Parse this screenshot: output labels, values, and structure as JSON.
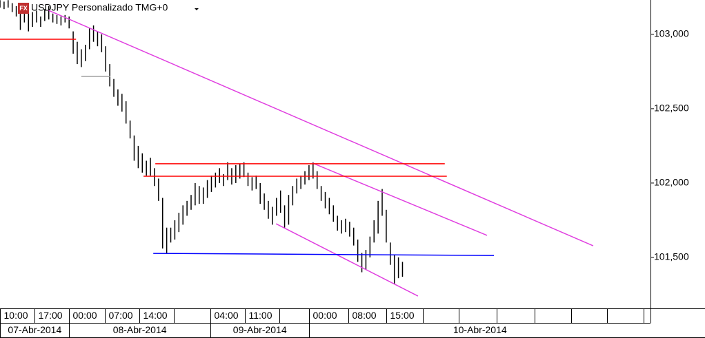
{
  "chart_data": {
    "type": "range",
    "title": "USDJPY Personalizado TMG+0",
    "icon_label": "FX",
    "color": "#000000",
    "xlim": [
      0,
      160
    ],
    "ylim": [
      101.157,
      103.231
    ],
    "yticks": [
      {
        "value": 103,
        "label": "103,000"
      },
      {
        "value": 102.5,
        "label": "102,500"
      },
      {
        "value": 102,
        "label": "102,000"
      },
      {
        "value": 101.5,
        "label": "101,500"
      }
    ],
    "xticks": [
      {
        "value": 0,
        "label": "10:00"
      },
      {
        "value": 8.5,
        "label": "17:00"
      },
      {
        "value": 17,
        "label": "00:00"
      },
      {
        "value": 25.8,
        "label": "07:00"
      },
      {
        "value": 34.3,
        "label": "14:00"
      },
      {
        "value": 51.7,
        "label": "04:00"
      },
      {
        "value": 60.2,
        "label": "11:00"
      },
      {
        "value": 76,
        "label": "00:00"
      },
      {
        "value": 85.7,
        "label": "08:00"
      },
      {
        "value": 95,
        "label": "15:00"
      }
    ],
    "date_ticks": [
      {
        "value": 0,
        "label": "07-Abr-2014"
      },
      {
        "value": 17,
        "label": "08-Abr-2014"
      },
      {
        "value": 51.7,
        "label": "09-Abr-2014"
      },
      {
        "value": 76,
        "label": "10-Abr-2014"
      }
    ],
    "x": [
      0,
      1,
      2,
      3,
      4,
      5,
      6,
      7,
      8,
      9,
      10,
      11,
      12,
      13,
      14,
      15,
      16,
      17,
      18,
      19,
      20,
      21,
      22,
      23,
      24,
      25,
      26,
      27,
      28,
      29,
      30,
      31,
      32,
      33,
      34,
      35,
      36,
      37,
      38,
      39,
      40,
      41,
      42,
      43,
      44,
      45,
      46,
      47,
      48,
      49,
      50,
      51,
      52,
      53,
      54,
      55,
      56,
      57,
      58,
      59,
      60,
      61,
      62,
      63,
      64,
      65,
      66,
      67,
      68,
      69,
      70,
      71,
      72,
      73,
      74,
      75,
      76,
      77,
      78,
      79,
      80,
      81,
      82,
      83,
      84,
      85,
      86,
      87,
      88,
      89,
      90,
      91,
      92,
      93,
      94,
      95,
      96,
      97,
      98,
      99
    ],
    "high": [
      103.23,
      103.22,
      103.23,
      103.21,
      103.19,
      103.16,
      103.17,
      103.14,
      103.15,
      103.16,
      103.12,
      103.17,
      103.19,
      103.14,
      103.13,
      103.12,
      103.13,
      103.12,
      103.02,
      102.95,
      102.9,
      102.93,
      103.04,
      103.06,
      103.02,
      103.0,
      102.92,
      102.8,
      102.7,
      102.63,
      102.6,
      102.55,
      102.42,
      102.32,
      102.25,
      102.2,
      102.15,
      102.17,
      102.1,
      102.03,
      101.9,
      101.7,
      101.7,
      101.75,
      101.8,
      101.85,
      101.88,
      101.92,
      102.0,
      101.98,
      101.97,
      102.02,
      102.05,
      102.07,
      102.1,
      102.06,
      102.14,
      102.1,
      102.12,
      102.13,
      102.14,
      102.07,
      102.04,
      102.05,
      102.0,
      101.93,
      101.88,
      101.84,
      101.9,
      101.95,
      101.85,
      101.92,
      101.98,
      102.03,
      102.05,
      102.08,
      102.12,
      102.14,
      102.08,
      101.98,
      101.94,
      101.9,
      101.85,
      101.78,
      101.75,
      101.76,
      101.74,
      101.7,
      101.62,
      101.53,
      101.55,
      101.64,
      101.75,
      101.88,
      101.96,
      101.82,
      101.6,
      101.52,
      101.5,
      101.47
    ],
    "low": [
      103.18,
      103.17,
      103.18,
      103.15,
      103.12,
      103.03,
      103.08,
      103.02,
      103.05,
      103.08,
      103.05,
      103.09,
      103.1,
      103.08,
      103.07,
      103.06,
      103.08,
      103.04,
      102.87,
      102.8,
      102.78,
      102.82,
      102.9,
      102.95,
      102.92,
      102.88,
      102.75,
      102.65,
      102.58,
      102.52,
      102.48,
      102.4,
      102.3,
      102.15,
      102.1,
      102.07,
      102.05,
      102.05,
      101.98,
      101.88,
      101.56,
      101.53,
      101.6,
      101.62,
      101.67,
      101.72,
      101.78,
      101.82,
      101.85,
      101.86,
      101.86,
      101.9,
      101.94,
      101.97,
      102.0,
      101.98,
      102.02,
      101.99,
      102.0,
      102.03,
      102.04,
      101.98,
      101.95,
      101.96,
      101.86,
      101.82,
      101.76,
      101.72,
      101.78,
      101.8,
      101.7,
      101.72,
      101.85,
      101.93,
      101.96,
      101.99,
      102.02,
      102.03,
      101.96,
      101.88,
      101.83,
      101.79,
      101.74,
      101.68,
      101.66,
      101.67,
      101.64,
      101.58,
      101.47,
      101.4,
      101.42,
      101.5,
      101.6,
      101.66,
      101.78,
      101.6,
      101.45,
      101.32,
      101.36,
      101.37
    ],
    "trendlines": [
      {
        "color": "#e040e0",
        "x": [
          11.9,
          145.9
        ],
        "y": [
          103.162,
          101.578
        ]
      },
      {
        "color": "#e040e0",
        "x": [
          76.9,
          119.8
        ],
        "y": [
          102.134,
          101.648
        ]
      },
      {
        "color": "#e040e0",
        "x": [
          67.9,
          102.8
        ],
        "y": [
          101.726,
          101.24
        ]
      },
      {
        "color": "#ff0000",
        "x": [
          38.2,
          109.4
        ],
        "y": [
          102.13,
          102.13
        ]
      },
      {
        "color": "#ff0000",
        "x": [
          35.3,
          109.9
        ],
        "y": [
          102.046,
          102.046
        ]
      },
      {
        "color": "#ff0000",
        "x": [
          0,
          18.7
        ],
        "y": [
          102.967,
          102.967
        ]
      },
      {
        "color": "#0000ff",
        "x": [
          37.7,
          121.5
        ],
        "y": [
          101.527,
          101.513
        ]
      },
      {
        "color": "#a0a0a0",
        "x": [
          20,
          27.1
        ],
        "y": [
          102.717,
          102.717
        ]
      }
    ]
  }
}
